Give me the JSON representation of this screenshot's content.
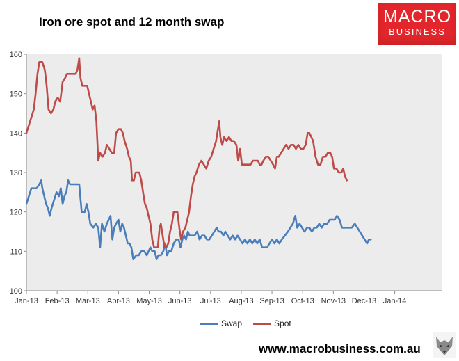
{
  "title": "Iron ore spot and 12 month swap",
  "logo": {
    "line1": "MACRO",
    "line2": "BUSINESS"
  },
  "website": "www.macrobusiness.com.au",
  "colors": {
    "swap": "#4a7ebb",
    "spot": "#be4b48",
    "plot_bg": "#ececec",
    "logo_bg": "#e3262b"
  },
  "legend_icon": "wolf-head-icon",
  "chart_data": {
    "type": "line",
    "title": "Iron ore spot and 12 month swap",
    "xlabel": "",
    "ylabel": "",
    "ylim": [
      100,
      160
    ],
    "yticks": [
      100,
      110,
      120,
      130,
      140,
      150,
      160
    ],
    "xlim": [
      0,
      13.55
    ],
    "xticks": [
      {
        "label": "Jan-13",
        "pos": 0
      },
      {
        "label": "Feb-13",
        "pos": 1
      },
      {
        "label": "Mar-13",
        "pos": 2
      },
      {
        "label": "Apr-13",
        "pos": 3
      },
      {
        "label": "May-13",
        "pos": 4
      },
      {
        "label": "Jun-13",
        "pos": 5
      },
      {
        "label": "Jul-13",
        "pos": 6
      },
      {
        "label": "Aug-13",
        "pos": 7
      },
      {
        "label": "Sep-13",
        "pos": 8
      },
      {
        "label": "Oct-13",
        "pos": 9
      },
      {
        "label": "Nov-13",
        "pos": 10
      },
      {
        "label": "Dec-13",
        "pos": 11
      },
      {
        "label": "Jan-14",
        "pos": 12
      }
    ],
    "grid": false,
    "legend_position": "bottom",
    "series": [
      {
        "name": "Swap",
        "color": "#4a7ebb",
        "points": [
          [
            0.0,
            122
          ],
          [
            0.08,
            124
          ],
          [
            0.16,
            126
          ],
          [
            0.25,
            126
          ],
          [
            0.33,
            126
          ],
          [
            0.42,
            127
          ],
          [
            0.48,
            128
          ],
          [
            0.52,
            126
          ],
          [
            0.58,
            124
          ],
          [
            0.64,
            122
          ],
          [
            0.7,
            121
          ],
          [
            0.76,
            119
          ],
          [
            0.82,
            121
          ],
          [
            0.9,
            123
          ],
          [
            0.98,
            125
          ],
          [
            1.06,
            124
          ],
          [
            1.12,
            126
          ],
          [
            1.18,
            122
          ],
          [
            1.24,
            124
          ],
          [
            1.3,
            125
          ],
          [
            1.36,
            128
          ],
          [
            1.42,
            127
          ],
          [
            1.6,
            127
          ],
          [
            1.72,
            127
          ],
          [
            1.8,
            120
          ],
          [
            1.9,
            120
          ],
          [
            1.96,
            122
          ],
          [
            2.02,
            120
          ],
          [
            2.08,
            117
          ],
          [
            2.18,
            116
          ],
          [
            2.26,
            117
          ],
          [
            2.34,
            116
          ],
          [
            2.4,
            111
          ],
          [
            2.46,
            117
          ],
          [
            2.54,
            115
          ],
          [
            2.62,
            117
          ],
          [
            2.68,
            118
          ],
          [
            2.74,
            119
          ],
          [
            2.8,
            113
          ],
          [
            2.86,
            116
          ],
          [
            2.92,
            117
          ],
          [
            3.0,
            118
          ],
          [
            3.06,
            115
          ],
          [
            3.12,
            117
          ],
          [
            3.18,
            116
          ],
          [
            3.24,
            114
          ],
          [
            3.3,
            112
          ],
          [
            3.36,
            112
          ],
          [
            3.42,
            111
          ],
          [
            3.48,
            108
          ],
          [
            3.58,
            109
          ],
          [
            3.66,
            109
          ],
          [
            3.74,
            110
          ],
          [
            3.84,
            110
          ],
          [
            3.92,
            109
          ],
          [
            3.98,
            110
          ],
          [
            4.04,
            111
          ],
          [
            4.1,
            110
          ],
          [
            4.18,
            110
          ],
          [
            4.24,
            108
          ],
          [
            4.3,
            109
          ],
          [
            4.38,
            109
          ],
          [
            4.46,
            110
          ],
          [
            4.52,
            112
          ],
          [
            4.58,
            109
          ],
          [
            4.64,
            110
          ],
          [
            4.72,
            110
          ],
          [
            4.8,
            112
          ],
          [
            4.88,
            113
          ],
          [
            4.96,
            113
          ],
          [
            5.02,
            111
          ],
          [
            5.08,
            113
          ],
          [
            5.14,
            114
          ],
          [
            5.2,
            113
          ],
          [
            5.26,
            115
          ],
          [
            5.32,
            114
          ],
          [
            5.4,
            114
          ],
          [
            5.48,
            114
          ],
          [
            5.56,
            115
          ],
          [
            5.64,
            113
          ],
          [
            5.72,
            114
          ],
          [
            5.8,
            114
          ],
          [
            5.88,
            113
          ],
          [
            5.96,
            113
          ],
          [
            6.04,
            114
          ],
          [
            6.12,
            115
          ],
          [
            6.2,
            116
          ],
          [
            6.26,
            115
          ],
          [
            6.34,
            115
          ],
          [
            6.42,
            114
          ],
          [
            6.48,
            115
          ],
          [
            6.56,
            114
          ],
          [
            6.64,
            113
          ],
          [
            6.72,
            114
          ],
          [
            6.8,
            113
          ],
          [
            6.88,
            114
          ],
          [
            6.96,
            113
          ],
          [
            7.04,
            112
          ],
          [
            7.12,
            113
          ],
          [
            7.2,
            112
          ],
          [
            7.28,
            113
          ],
          [
            7.36,
            112
          ],
          [
            7.44,
            113
          ],
          [
            7.52,
            112
          ],
          [
            7.6,
            113
          ],
          [
            7.68,
            111
          ],
          [
            7.76,
            111
          ],
          [
            7.84,
            111
          ],
          [
            7.92,
            112
          ],
          [
            8.0,
            113
          ],
          [
            8.08,
            112
          ],
          [
            8.16,
            113
          ],
          [
            8.24,
            112
          ],
          [
            8.32,
            113
          ],
          [
            8.42,
            114
          ],
          [
            8.52,
            115
          ],
          [
            8.6,
            116
          ],
          [
            8.68,
            117
          ],
          [
            8.76,
            119
          ],
          [
            8.82,
            116
          ],
          [
            8.9,
            117
          ],
          [
            8.98,
            116
          ],
          [
            9.06,
            115
          ],
          [
            9.14,
            116
          ],
          [
            9.22,
            116
          ],
          [
            9.3,
            115
          ],
          [
            9.38,
            116
          ],
          [
            9.46,
            116
          ],
          [
            9.54,
            117
          ],
          [
            9.62,
            116
          ],
          [
            9.7,
            117
          ],
          [
            9.8,
            117
          ],
          [
            9.88,
            118
          ],
          [
            9.96,
            118
          ],
          [
            10.04,
            118
          ],
          [
            10.12,
            119
          ],
          [
            10.2,
            118
          ],
          [
            10.28,
            116
          ],
          [
            10.36,
            116
          ],
          [
            10.44,
            116
          ],
          [
            10.52,
            116
          ],
          [
            10.6,
            116
          ],
          [
            10.7,
            117
          ],
          [
            10.78,
            116
          ],
          [
            10.86,
            115
          ],
          [
            10.94,
            114
          ],
          [
            11.02,
            113
          ],
          [
            11.1,
            112
          ],
          [
            11.16,
            113
          ],
          [
            11.22,
            113
          ]
        ]
      },
      {
        "name": "Spot",
        "color": "#be4b48",
        "points": [
          [
            0.0,
            140
          ],
          [
            0.08,
            142
          ],
          [
            0.16,
            144
          ],
          [
            0.24,
            146
          ],
          [
            0.3,
            150
          ],
          [
            0.36,
            155
          ],
          [
            0.42,
            158
          ],
          [
            0.52,
            158
          ],
          [
            0.6,
            156
          ],
          [
            0.66,
            152
          ],
          [
            0.72,
            146
          ],
          [
            0.8,
            145
          ],
          [
            0.88,
            146
          ],
          [
            0.94,
            148
          ],
          [
            1.02,
            149
          ],
          [
            1.1,
            148
          ],
          [
            1.18,
            153
          ],
          [
            1.26,
            154
          ],
          [
            1.32,
            155
          ],
          [
            1.4,
            155
          ],
          [
            1.5,
            155
          ],
          [
            1.6,
            155
          ],
          [
            1.66,
            156
          ],
          [
            1.72,
            159
          ],
          [
            1.76,
            154
          ],
          [
            1.82,
            152
          ],
          [
            1.9,
            152
          ],
          [
            1.98,
            152
          ],
          [
            2.04,
            150
          ],
          [
            2.1,
            148
          ],
          [
            2.16,
            146
          ],
          [
            2.22,
            147
          ],
          [
            2.28,
            143
          ],
          [
            2.34,
            133
          ],
          [
            2.4,
            135
          ],
          [
            2.48,
            134
          ],
          [
            2.56,
            135
          ],
          [
            2.62,
            137
          ],
          [
            2.7,
            136
          ],
          [
            2.78,
            135
          ],
          [
            2.86,
            135
          ],
          [
            2.92,
            140
          ],
          [
            3.0,
            141
          ],
          [
            3.08,
            141
          ],
          [
            3.14,
            140
          ],
          [
            3.2,
            138
          ],
          [
            3.28,
            136
          ],
          [
            3.34,
            134
          ],
          [
            3.4,
            133
          ],
          [
            3.44,
            128
          ],
          [
            3.5,
            128
          ],
          [
            3.56,
            130
          ],
          [
            3.62,
            130
          ],
          [
            3.68,
            130
          ],
          [
            3.74,
            128
          ],
          [
            3.8,
            125
          ],
          [
            3.86,
            122
          ],
          [
            3.92,
            121
          ],
          [
            3.98,
            119
          ],
          [
            4.04,
            117
          ],
          [
            4.1,
            113
          ],
          [
            4.16,
            111
          ],
          [
            4.22,
            111
          ],
          [
            4.28,
            111
          ],
          [
            4.34,
            116
          ],
          [
            4.38,
            117
          ],
          [
            4.44,
            114
          ],
          [
            4.5,
            111
          ],
          [
            4.56,
            111
          ],
          [
            4.62,
            112
          ],
          [
            4.68,
            115
          ],
          [
            4.74,
            117
          ],
          [
            4.8,
            120
          ],
          [
            4.86,
            120
          ],
          [
            4.92,
            120
          ],
          [
            4.98,
            116
          ],
          [
            5.04,
            113
          ],
          [
            5.1,
            115
          ],
          [
            5.18,
            116
          ],
          [
            5.24,
            118
          ],
          [
            5.3,
            120
          ],
          [
            5.36,
            124
          ],
          [
            5.42,
            127
          ],
          [
            5.48,
            129
          ],
          [
            5.54,
            130
          ],
          [
            5.62,
            132
          ],
          [
            5.7,
            133
          ],
          [
            5.78,
            132
          ],
          [
            5.86,
            131
          ],
          [
            5.94,
            133
          ],
          [
            6.02,
            134
          ],
          [
            6.1,
            136
          ],
          [
            6.18,
            138
          ],
          [
            6.24,
            141
          ],
          [
            6.28,
            143
          ],
          [
            6.32,
            139
          ],
          [
            6.38,
            137
          ],
          [
            6.44,
            139
          ],
          [
            6.52,
            138
          ],
          [
            6.6,
            139
          ],
          [
            6.68,
            138
          ],
          [
            6.76,
            138
          ],
          [
            6.84,
            137
          ],
          [
            6.9,
            133
          ],
          [
            6.96,
            136
          ],
          [
            7.02,
            132
          ],
          [
            7.1,
            132
          ],
          [
            7.2,
            132
          ],
          [
            7.3,
            132
          ],
          [
            7.38,
            133
          ],
          [
            7.46,
            133
          ],
          [
            7.54,
            133
          ],
          [
            7.6,
            132
          ],
          [
            7.66,
            132
          ],
          [
            7.72,
            133
          ],
          [
            7.8,
            134
          ],
          [
            7.88,
            134
          ],
          [
            7.96,
            133
          ],
          [
            8.04,
            132
          ],
          [
            8.1,
            131
          ],
          [
            8.16,
            134
          ],
          [
            8.22,
            134
          ],
          [
            8.3,
            135
          ],
          [
            8.38,
            136
          ],
          [
            8.46,
            137
          ],
          [
            8.54,
            136
          ],
          [
            8.62,
            137
          ],
          [
            8.7,
            137
          ],
          [
            8.78,
            136
          ],
          [
            8.86,
            137
          ],
          [
            8.94,
            136
          ],
          [
            9.02,
            136
          ],
          [
            9.1,
            137
          ],
          [
            9.16,
            140
          ],
          [
            9.22,
            140
          ],
          [
            9.28,
            139
          ],
          [
            9.34,
            138
          ],
          [
            9.42,
            134
          ],
          [
            9.5,
            132
          ],
          [
            9.58,
            132
          ],
          [
            9.66,
            134
          ],
          [
            9.74,
            134
          ],
          [
            9.82,
            135
          ],
          [
            9.9,
            135
          ],
          [
            9.96,
            134
          ],
          [
            10.02,
            131
          ],
          [
            10.1,
            131
          ],
          [
            10.18,
            130
          ],
          [
            10.26,
            130
          ],
          [
            10.32,
            131
          ],
          [
            10.38,
            129
          ],
          [
            10.44,
            128
          ]
        ]
      }
    ]
  }
}
